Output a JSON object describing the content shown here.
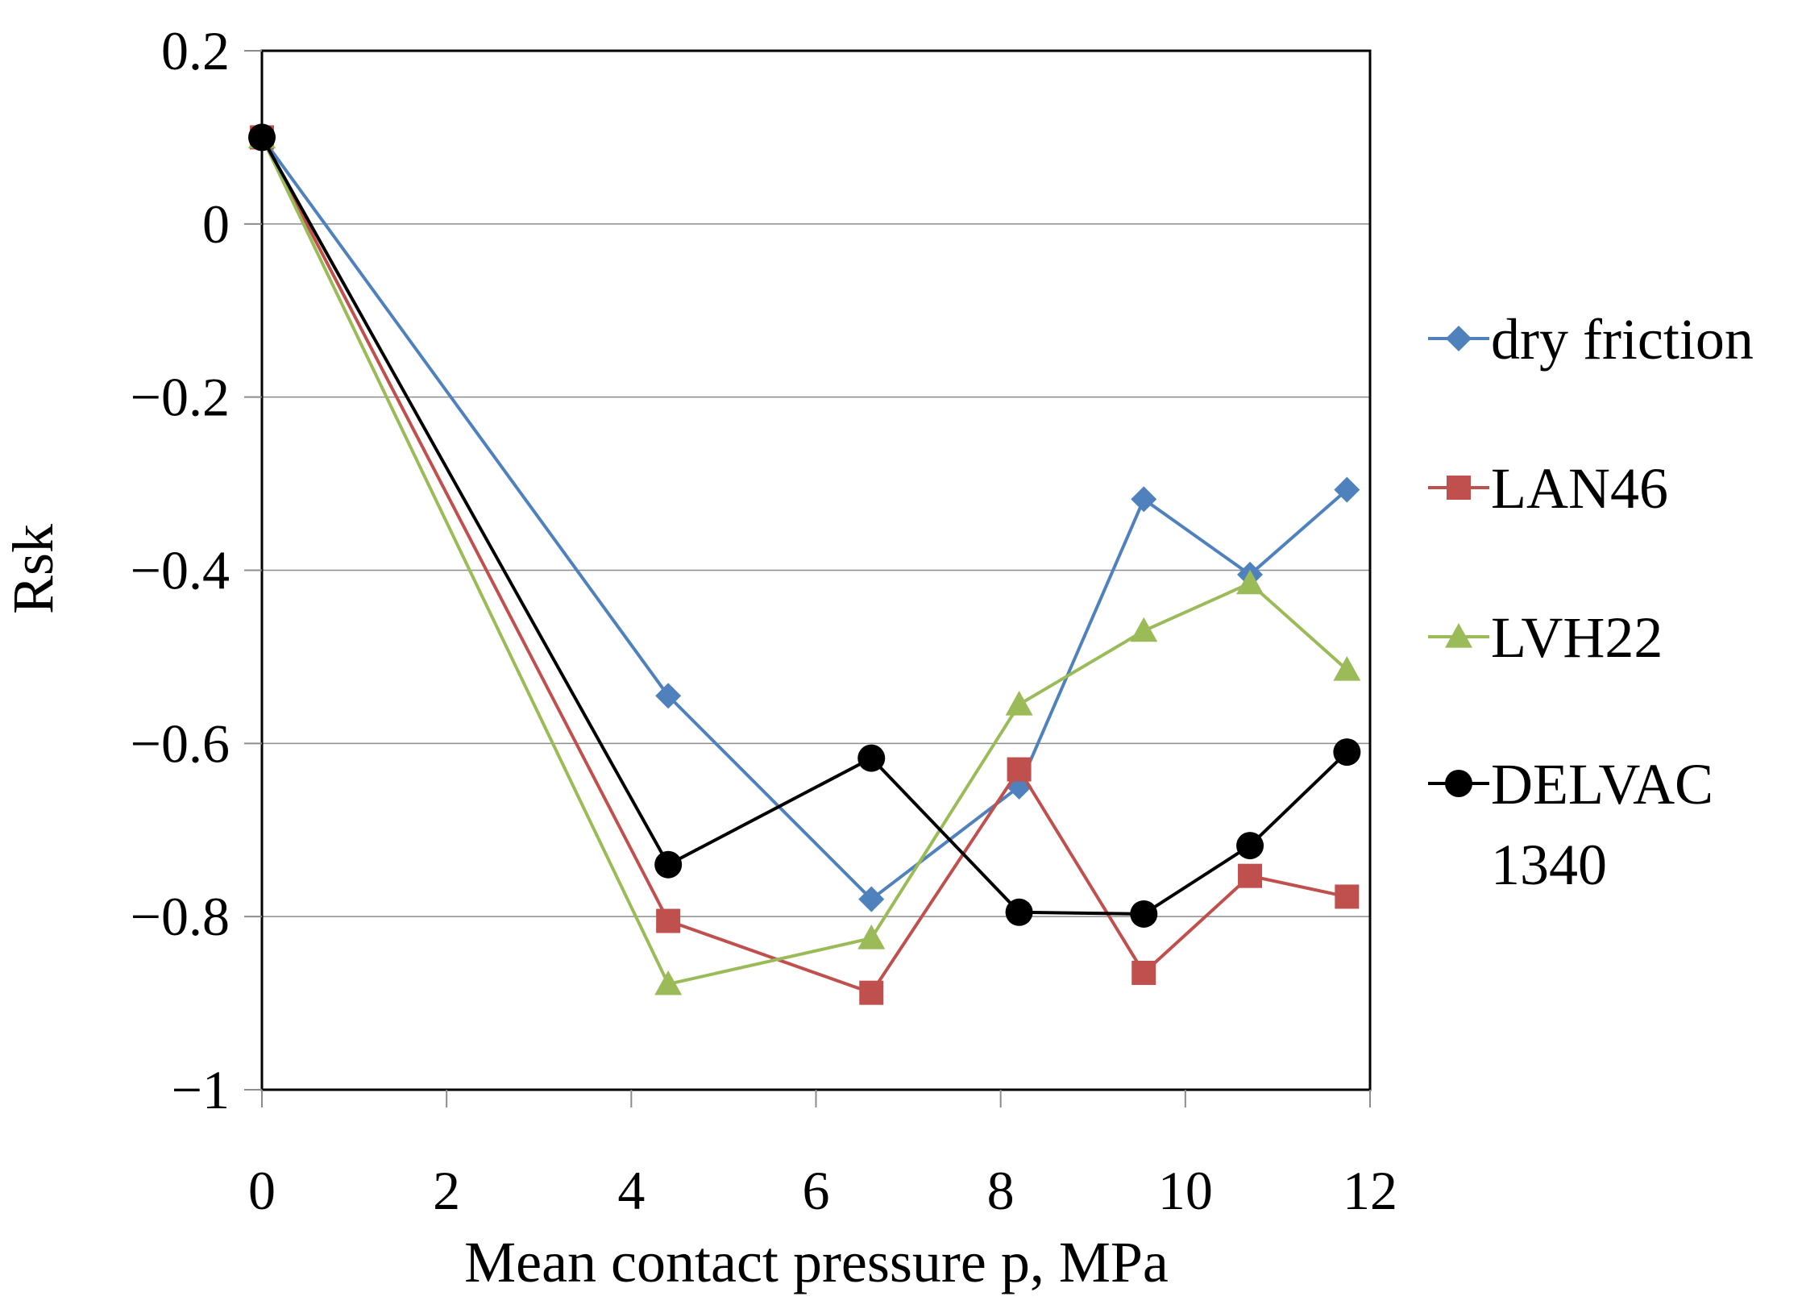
{
  "chart_data": {
    "type": "line",
    "title": "",
    "xlabel": "Mean contact pressure p, MPa",
    "ylabel": "Rsk",
    "xlim": [
      0,
      12
    ],
    "ylim": [
      -1,
      0.2
    ],
    "x_ticks": [
      "0",
      "2",
      "4",
      "6",
      "8",
      "10",
      "12"
    ],
    "y_ticks": [
      "0.2",
      "0",
      "−0.2",
      "−0.4",
      "−0.6",
      "−0.8",
      "−1"
    ],
    "x_tick_values": [
      0,
      2,
      4,
      6,
      8,
      10,
      12
    ],
    "y_tick_values": [
      0.2,
      0,
      -0.2,
      -0.4,
      -0.6,
      -0.8,
      -1
    ],
    "grid": "horizontal",
    "legend_position": "right",
    "series": [
      {
        "name": "dry friction",
        "color": "#4F81BD",
        "marker": "diamond",
        "x": [
          0,
          4.4,
          6.6,
          8.2,
          9.55,
          10.7,
          11.75
        ],
        "y": [
          0.1,
          -0.545,
          -0.78,
          -0.65,
          -0.318,
          -0.405,
          -0.307
        ]
      },
      {
        "name": "LAN46",
        "color": "#C0504D",
        "marker": "square",
        "x": [
          0,
          4.4,
          6.6,
          8.2,
          9.55,
          10.7,
          11.75
        ],
        "y": [
          0.1,
          -0.805,
          -0.888,
          -0.63,
          -0.865,
          -0.753,
          -0.777
        ]
      },
      {
        "name": "LVH22",
        "color": "#9BBB59",
        "marker": "triangle",
        "x": [
          0,
          4.4,
          6.6,
          8.2,
          9.55,
          10.7,
          11.75
        ],
        "y": [
          0.1,
          -0.878,
          -0.825,
          -0.555,
          -0.47,
          -0.415,
          -0.515
        ]
      },
      {
        "name": "DELVAC 1340",
        "name_lines": [
          "DELVAC",
          "1340"
        ],
        "color": "#000000",
        "marker": "circle",
        "x": [
          0,
          4.4,
          6.6,
          8.2,
          9.55,
          10.7,
          11.75
        ],
        "y": [
          0.1,
          -0.74,
          -0.617,
          -0.795,
          -0.797,
          -0.718,
          -0.61
        ]
      }
    ]
  }
}
